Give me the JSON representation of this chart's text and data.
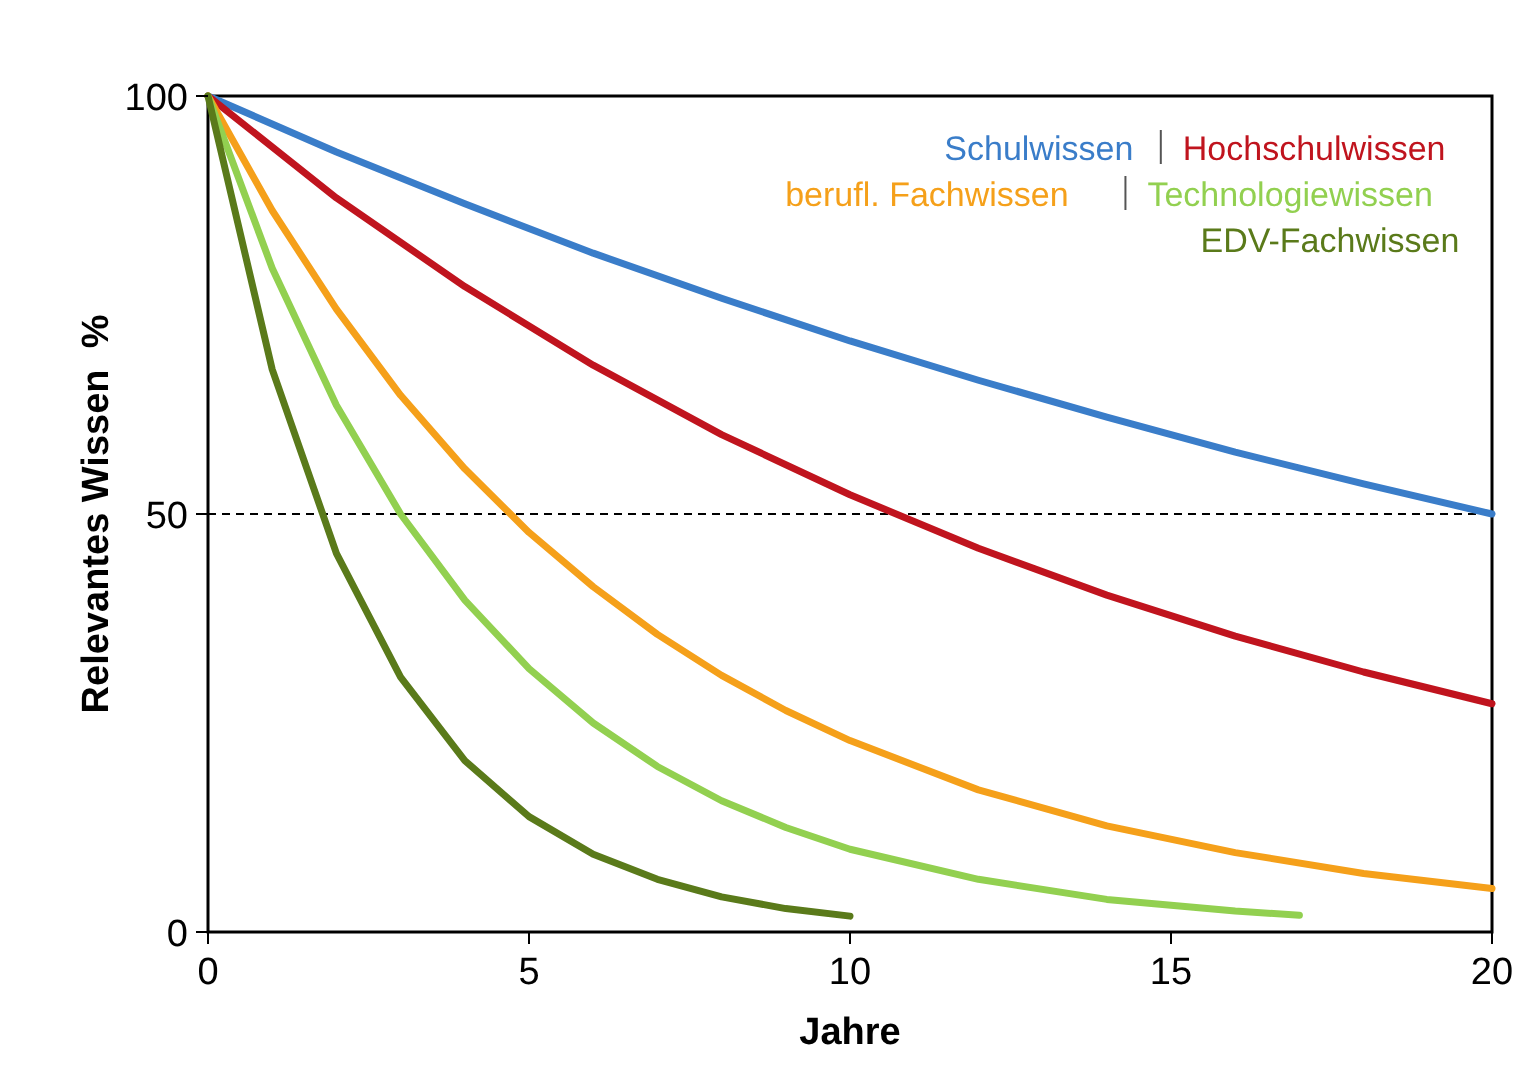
{
  "chart_data": {
    "type": "line",
    "xlabel": "Jahre",
    "ylabel": "Relevantes Wissen  %",
    "xlim": [
      0,
      20
    ],
    "ylim": [
      0,
      100
    ],
    "xticks": [
      0,
      5,
      10,
      15,
      20
    ],
    "yticks": [
      0,
      50,
      100
    ],
    "grid": false,
    "legend": "top right",
    "marker": "none",
    "line_style": "solid",
    "ref_lines": [
      {
        "axis": "y",
        "value": 50,
        "color": "#000000",
        "line_style": "dashed"
      }
    ],
    "series": [
      {
        "name": "Schulwissen",
        "color": "#3a7dc9",
        "x": [
          0,
          2,
          4,
          6,
          8,
          10,
          12,
          14,
          16,
          18,
          20
        ],
        "values": [
          100,
          93.3,
          87.1,
          81.2,
          75.8,
          70.7,
          66.0,
          61.6,
          57.4,
          53.6,
          50
        ]
      },
      {
        "name": "Hochschulwissen",
        "color": "#c0141e",
        "x": [
          0,
          2,
          4,
          6,
          8,
          10,
          12,
          14,
          16,
          18,
          20
        ],
        "values": [
          100,
          87.8,
          77.2,
          67.8,
          59.5,
          52.3,
          45.9,
          40.3,
          35.4,
          31.1,
          27.3
        ]
      },
      {
        "name": "berufl. Fachwissen",
        "color": "#f5a01a",
        "x": [
          0,
          1,
          2,
          3,
          4,
          5,
          6,
          7,
          8,
          9,
          10,
          12,
          14,
          16,
          18,
          20
        ],
        "values": [
          100,
          86.3,
          74.5,
          64.2,
          55.4,
          47.8,
          41.3,
          35.6,
          30.7,
          26.5,
          22.9,
          17.0,
          12.7,
          9.5,
          7.0,
          5.2
        ]
      },
      {
        "name": "Technologiewissen",
        "color": "#92d050",
        "x": [
          0,
          1,
          2,
          3,
          4,
          5,
          6,
          7,
          8,
          9,
          10,
          12,
          14,
          16,
          17
        ],
        "values": [
          100,
          79.4,
          63.0,
          50,
          39.7,
          31.5,
          25,
          19.8,
          15.7,
          12.5,
          9.9,
          6.3,
          3.9,
          2.5,
          2.0
        ]
      },
      {
        "name": "EDV-Fachwissen",
        "color": "#5a7a1a",
        "x": [
          0,
          1,
          2,
          3,
          4,
          5,
          6,
          7,
          8,
          9,
          10
        ],
        "values": [
          100,
          67.3,
          45.3,
          30.5,
          20.5,
          13.8,
          9.3,
          6.3,
          4.2,
          2.8,
          1.9
        ]
      }
    ]
  }
}
